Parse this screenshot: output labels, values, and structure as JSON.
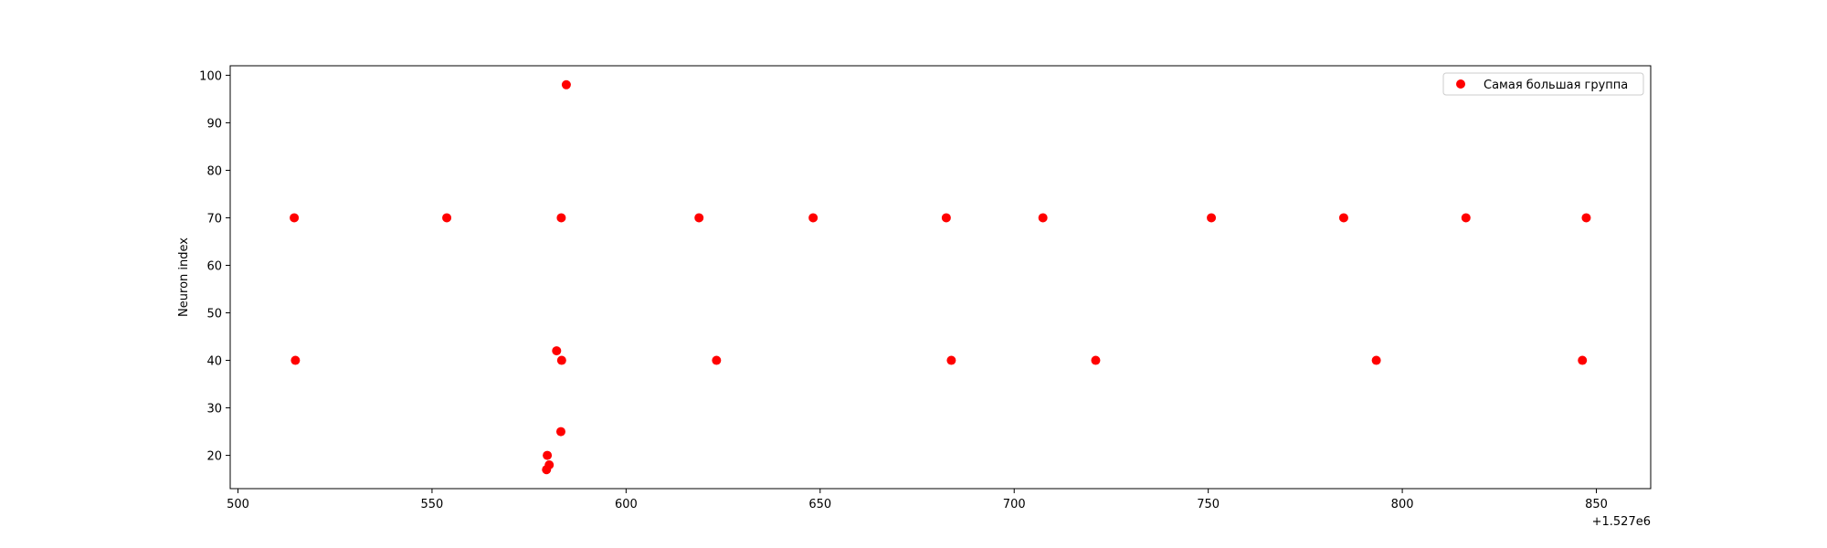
{
  "chart_data": {
    "type": "scatter",
    "title": "",
    "xlabel": "",
    "ylabel": "Neuron index",
    "x_offset_label": "+1.527e6",
    "xlim": [
      498,
      864
    ],
    "ylim": [
      13,
      102
    ],
    "xticks": [
      500,
      550,
      600,
      650,
      700,
      750,
      800,
      850
    ],
    "yticks": [
      20,
      30,
      40,
      50,
      60,
      70,
      80,
      90,
      100
    ],
    "grid": false,
    "legend_position": "top-right",
    "series": [
      {
        "name": "Самая большая группа",
        "color": "#ff0000",
        "x": [
          514.5,
          514.8,
          553.8,
          579.5,
          579.7,
          580.2,
          582.1,
          583.2,
          583.3,
          583.4,
          584.6,
          618.8,
          623.3,
          648.2,
          682.5,
          683.8,
          707.4,
          721.0,
          750.8,
          784.9,
          793.3,
          816.4,
          846.4,
          847.4
        ],
        "y": [
          70,
          40,
          70,
          17,
          20,
          18,
          42,
          25,
          70,
          40,
          98,
          70,
          40,
          70,
          70,
          40,
          70,
          40,
          70,
          70,
          40,
          70,
          40,
          70
        ]
      }
    ]
  }
}
